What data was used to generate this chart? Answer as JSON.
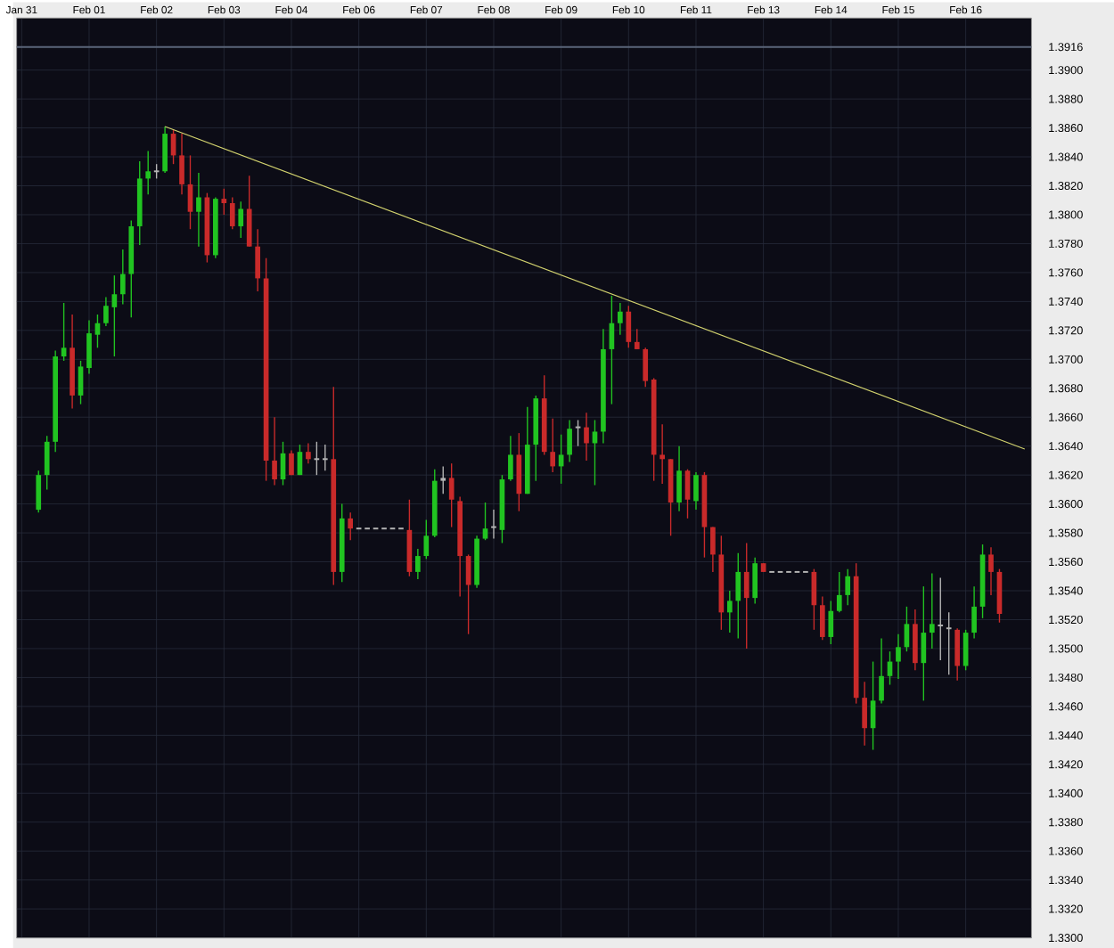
{
  "chart_data": {
    "type": "candlestick",
    "categories": [
      "Jan 31",
      null,
      null,
      null,
      null,
      null,
      null,
      null,
      "Feb 01",
      null,
      null,
      null,
      null,
      null,
      null,
      null,
      "Feb 02",
      null,
      null,
      null,
      null,
      null,
      null,
      null,
      "Feb 03",
      null,
      null,
      null,
      null,
      null,
      null,
      null,
      "Feb 04",
      null,
      null,
      null,
      null,
      null,
      null,
      null,
      "Feb 06",
      null,
      null,
      null,
      null,
      null,
      null,
      null,
      "Feb 07",
      null,
      null,
      null,
      null,
      null,
      null,
      null,
      "Feb 08",
      null,
      null,
      null,
      null,
      null,
      null,
      null,
      "Feb 09",
      null,
      null,
      null,
      null,
      null,
      null,
      null,
      "Feb 10",
      null,
      null,
      null,
      null,
      null,
      null,
      null,
      "Feb 11",
      null,
      null,
      null,
      null,
      null,
      null,
      null,
      "Feb 13",
      null,
      null,
      null,
      null,
      null,
      null,
      null,
      "Feb 14",
      null,
      null,
      null,
      null,
      null,
      null,
      null,
      "Feb 15",
      null,
      null,
      null,
      null,
      null,
      null,
      null,
      "Feb 16",
      null,
      null,
      null,
      null,
      null,
      null,
      null
    ],
    "ohlc": [
      null,
      null,
      [
        1.3596,
        1.3623,
        1.3594,
        1.362
      ],
      [
        1.362,
        1.3647,
        1.361,
        1.3643
      ],
      [
        1.3643,
        1.3706,
        1.3636,
        1.3702
      ],
      [
        1.3702,
        1.3739,
        1.3699,
        1.3708
      ],
      [
        1.3708,
        1.3731,
        1.3666,
        1.3675
      ],
      [
        1.3675,
        1.3699,
        1.3669,
        1.3695
      ],
      [
        1.3694,
        1.3727,
        1.369,
        1.3718
      ],
      [
        1.3717,
        1.3731,
        1.3708,
        1.3725
      ],
      [
        1.3725,
        1.3743,
        1.3723,
        1.3737
      ],
      [
        1.3736,
        1.3758,
        1.3702,
        1.3745
      ],
      [
        1.3745,
        1.3776,
        1.3738,
        1.3759
      ],
      [
        1.3759,
        1.3796,
        1.3729,
        1.3792
      ],
      [
        1.3792,
        1.3837,
        1.3779,
        1.3825
      ],
      [
        1.3825,
        1.3844,
        1.3814,
        1.383
      ],
      [
        1.383,
        1.3835,
        1.3825,
        1.383
      ],
      [
        1.383,
        1.3861,
        1.3829,
        1.3856
      ],
      [
        1.3856,
        1.3859,
        1.3835,
        1.3841
      ],
      [
        1.3841,
        1.3856,
        1.3814,
        1.3821
      ],
      [
        1.3821,
        1.3841,
        1.379,
        1.3802
      ],
      [
        1.3802,
        1.3829,
        1.3778,
        1.3812
      ],
      [
        1.3812,
        1.3815,
        1.3767,
        1.3772
      ],
      [
        1.3772,
        1.3812,
        1.377,
        1.3811
      ],
      [
        1.3811,
        1.3818,
        1.38,
        1.3808
      ],
      [
        1.3808,
        1.3812,
        1.379,
        1.3792
      ],
      [
        1.3792,
        1.3809,
        1.3784,
        1.3804
      ],
      [
        1.3804,
        1.3827,
        1.3778,
        1.3778
      ],
      [
        1.3778,
        1.379,
        1.3747,
        1.3756
      ],
      [
        1.3756,
        1.377,
        1.3616,
        1.363
      ],
      [
        1.363,
        1.366,
        1.3613,
        1.3617
      ],
      [
        1.3617,
        1.3643,
        1.3613,
        1.3635
      ],
      [
        1.3635,
        1.3637,
        1.362,
        1.362
      ],
      [
        1.362,
        1.3641,
        1.362,
        1.3636
      ],
      [
        1.3636,
        1.3642,
        1.3628,
        1.3631
      ],
      [
        1.3631,
        1.3643,
        1.362,
        1.3631
      ],
      [
        1.3631,
        1.3641,
        1.3623,
        1.3631
      ],
      [
        1.3631,
        1.3681,
        1.3544,
        1.3553
      ],
      [
        1.3553,
        1.36,
        1.3546,
        1.359
      ],
      [
        1.359,
        1.3594,
        1.3575,
        1.3583
      ],
      [
        1.3583,
        1.3583,
        1.3583,
        1.3583
      ],
      [
        1.3583,
        1.3583,
        1.3583,
        1.3583
      ],
      [
        1.3583,
        1.3583,
        1.3583,
        1.3583
      ],
      [
        1.3583,
        1.3583,
        1.3583,
        1.3583
      ],
      [
        1.3583,
        1.3583,
        1.3583,
        1.3583
      ],
      [
        1.3583,
        1.3583,
        1.3583,
        1.3583
      ],
      [
        1.3582,
        1.3603,
        1.355,
        1.3553
      ],
      [
        1.3553,
        1.3569,
        1.3548,
        1.3564
      ],
      [
        1.3564,
        1.3589,
        1.3562,
        1.3578
      ],
      [
        1.3578,
        1.3624,
        1.3577,
        1.3616
      ],
      [
        1.3616,
        1.3626,
        1.3607,
        1.3618
      ],
      [
        1.3618,
        1.3628,
        1.3584,
        1.3603
      ],
      [
        1.3602,
        1.3605,
        1.3536,
        1.3564
      ],
      [
        1.3564,
        1.3565,
        1.351,
        1.3544
      ],
      [
        1.3544,
        1.3578,
        1.3542,
        1.3576
      ],
      [
        1.3576,
        1.3601,
        1.3575,
        1.3583
      ],
      [
        1.3584,
        1.3596,
        1.3576,
        1.3584
      ],
      [
        1.3582,
        1.362,
        1.3573,
        1.3617
      ],
      [
        1.3617,
        1.3647,
        1.3616,
        1.3634
      ],
      [
        1.3634,
        1.3649,
        1.3595,
        1.3607
      ],
      [
        1.3607,
        1.3667,
        1.3607,
        1.3641
      ],
      [
        1.3641,
        1.3675,
        1.3616,
        1.3673
      ],
      [
        1.3673,
        1.3689,
        1.3634,
        1.3636
      ],
      [
        1.3636,
        1.3659,
        1.3622,
        1.3626
      ],
      [
        1.3626,
        1.3648,
        1.3614,
        1.3634
      ],
      [
        1.3634,
        1.3658,
        1.3629,
        1.3652
      ],
      [
        1.3653,
        1.3658,
        1.364,
        1.3653
      ],
      [
        1.3653,
        1.3663,
        1.363,
        1.3642
      ],
      [
        1.3642,
        1.3658,
        1.3613,
        1.365
      ],
      [
        1.365,
        1.3721,
        1.3642,
        1.3707
      ],
      [
        1.3707,
        1.3744,
        1.3669,
        1.3725
      ],
      [
        1.3725,
        1.3739,
        1.3717,
        1.3733
      ],
      [
        1.3733,
        1.3737,
        1.3708,
        1.3712
      ],
      [
        1.3712,
        1.3721,
        1.3707,
        1.3707
      ],
      [
        1.3707,
        1.3708,
        1.3681,
        1.3685
      ],
      [
        1.3686,
        1.3687,
        1.3616,
        1.3634
      ],
      [
        1.3634,
        1.3655,
        1.3614,
        1.3631
      ],
      [
        1.3631,
        1.3631,
        1.3578,
        1.3601
      ],
      [
        1.3601,
        1.364,
        1.3595,
        1.3623
      ],
      [
        1.3623,
        1.3624,
        1.359,
        1.3603
      ],
      [
        1.3602,
        1.3622,
        1.3596,
        1.362
      ],
      [
        1.362,
        1.3622,
        1.3563,
        1.3584
      ],
      [
        1.3584,
        1.3584,
        1.3553,
        1.3565
      ],
      [
        1.3565,
        1.3578,
        1.3513,
        1.3525
      ],
      [
        1.3525,
        1.354,
        1.3511,
        1.3533
      ],
      [
        1.3533,
        1.3566,
        1.3507,
        1.3553
      ],
      [
        1.3553,
        1.3573,
        1.35,
        1.3535
      ],
      [
        1.3535,
        1.3563,
        1.3531,
        1.3559
      ],
      [
        1.3559,
        1.3559,
        1.3553,
        1.3553
      ],
      [
        1.3553,
        1.3553,
        1.3553,
        1.3553
      ],
      [
        1.3553,
        1.3553,
        1.3553,
        1.3553
      ],
      [
        1.3553,
        1.3553,
        1.3553,
        1.3553
      ],
      [
        1.3553,
        1.3553,
        1.3553,
        1.3553
      ],
      [
        1.3553,
        1.3553,
        1.3553,
        1.3553
      ],
      [
        1.3553,
        1.3555,
        1.3513,
        1.353
      ],
      [
        1.353,
        1.3536,
        1.3506,
        1.3508
      ],
      [
        1.3508,
        1.3533,
        1.3503,
        1.3526
      ],
      [
        1.3526,
        1.3553,
        1.3525,
        1.3537
      ],
      [
        1.3537,
        1.3555,
        1.353,
        1.355
      ],
      [
        1.355,
        1.3559,
        1.3462,
        1.3466
      ],
      [
        1.3466,
        1.3477,
        1.3433,
        1.3445
      ],
      [
        1.3445,
        1.3491,
        1.343,
        1.3464
      ],
      [
        1.3464,
        1.3507,
        1.3462,
        1.3481
      ],
      [
        1.3481,
        1.3498,
        1.3475,
        1.3491
      ],
      [
        1.3491,
        1.351,
        1.3479,
        1.3501
      ],
      [
        1.3501,
        1.3529,
        1.3498,
        1.3517
      ],
      [
        1.3517,
        1.3527,
        1.3485,
        1.349
      ],
      [
        1.349,
        1.3543,
        1.3464,
        1.3511
      ],
      [
        1.3511,
        1.3552,
        1.35,
        1.3517
      ],
      [
        1.3516,
        1.3549,
        1.3492,
        1.3516
      ],
      [
        1.3514,
        1.3525,
        1.3482,
        1.3514
      ],
      [
        1.3513,
        1.3514,
        1.3478,
        1.3488
      ],
      [
        1.3488,
        1.3513,
        1.3485,
        1.3511
      ],
      [
        1.3511,
        1.3543,
        1.3507,
        1.3529
      ],
      [
        1.3529,
        1.3572,
        1.3521,
        1.3565
      ],
      [
        1.3565,
        1.357,
        1.3537,
        1.3553
      ],
      [
        1.3553,
        1.3555,
        1.3518,
        1.3524
      ],
      null,
      null,
      null
    ],
    "colors": [
      null,
      null,
      "#21c421",
      "#21c421",
      "#21c421",
      "#21c421",
      "#c92a2a",
      "#21c421",
      "#21c421",
      "#21c421",
      "#21c421",
      "#21c421",
      "#21c421",
      "#21c421",
      "#21c421",
      "#21c421",
      "#b4b4b4",
      "#21c421",
      "#c92a2a",
      "#c92a2a",
      "#c92a2a",
      "#21c421",
      "#c92a2a",
      "#21c421",
      "#c92a2a",
      "#c92a2a",
      "#21c421",
      "#c92a2a",
      "#c92a2a",
      "#c92a2a",
      "#c92a2a",
      "#21c421",
      "#c92a2a",
      "#21c421",
      "#c92a2a",
      "#b4b4b4",
      "#b4b4b4",
      "#c92a2a",
      "#21c421",
      "#c92a2a",
      "#b4b4b4",
      "#b4b4b4",
      "#b4b4b4",
      "#b4b4b4",
      "#b4b4b4",
      "#b4b4b4",
      "#c92a2a",
      "#21c421",
      "#21c421",
      "#21c421",
      "#b4b4b4",
      "#c92a2a",
      "#c92a2a",
      "#c92a2a",
      "#21c421",
      "#21c421",
      "#b4b4b4",
      "#21c421",
      "#21c421",
      "#c92a2a",
      "#21c421",
      "#21c421",
      "#c92a2a",
      "#c92a2a",
      "#21c421",
      "#21c421",
      "#b4b4b4",
      "#c92a2a",
      "#21c421",
      "#21c421",
      "#21c421",
      "#21c421",
      "#c92a2a",
      "#c92a2a",
      "#c92a2a",
      "#c92a2a",
      "#c92a2a",
      "#c92a2a",
      "#21c421",
      "#c92a2a",
      "#21c421",
      "#c92a2a",
      "#c92a2a",
      "#c92a2a",
      "#21c421",
      "#21c421",
      "#c92a2a",
      "#21c421",
      "#c92a2a",
      "#b4b4b4",
      "#b4b4b4",
      "#b4b4b4",
      "#b4b4b4",
      "#b4b4b4",
      "#c92a2a",
      "#c92a2a",
      "#21c421",
      "#21c421",
      "#21c421",
      "#c92a2a",
      "#c92a2a",
      "#21c421",
      "#21c421",
      "#21c421",
      "#21c421",
      "#21c421",
      "#c92a2a",
      "#21c421",
      "#21c421",
      "#b4b4b4",
      "#b4b4b4",
      "#c92a2a",
      "#21c421",
      "#21c421",
      "#21c421",
      "#c92a2a",
      "#c92a2a",
      null,
      null,
      null
    ],
    "series": [
      {
        "type": "line",
        "color": "#d2d26e",
        "values": [
          null,
          null,
          null,
          null,
          null,
          null,
          null,
          null,
          null,
          null,
          null,
          null,
          null,
          null,
          null,
          null,
          null,
          1.3861,
          null,
          null,
          null,
          null,
          null,
          null,
          null,
          null,
          null,
          null,
          null,
          null,
          null,
          null,
          null,
          null,
          null,
          null,
          null,
          null,
          null,
          null,
          null,
          null,
          null,
          null,
          null,
          null,
          null,
          null,
          null,
          null,
          null,
          null,
          null,
          null,
          null,
          null,
          null,
          null,
          null,
          null,
          null,
          null,
          null,
          null,
          null,
          null,
          null,
          null,
          null,
          null,
          null,
          null,
          null,
          null,
          null,
          null,
          null,
          null,
          null,
          null,
          null,
          null,
          null,
          null,
          null,
          null,
          null,
          null,
          null,
          null,
          null,
          null,
          null,
          null,
          null,
          null,
          null,
          null,
          null,
          null,
          null,
          null,
          null,
          null,
          null,
          null,
          null,
          null,
          null,
          null,
          null,
          null,
          null,
          null,
          null,
          null,
          null,
          null,
          null,
          1.3638
        ]
      }
    ],
    "ref_lines": [
      {
        "axis": "y",
        "value": 1.3916,
        "color": "#5a6478"
      }
    ],
    "ylim": [
      1.33,
      1.3936
    ],
    "yticks": [
      {
        "value": 1.33,
        "label": "1.3300"
      },
      {
        "value": 1.332,
        "label": "1.3320"
      },
      {
        "value": 1.334,
        "label": "1.3340"
      },
      {
        "value": 1.336,
        "label": "1.3360"
      },
      {
        "value": 1.338,
        "label": "1.3380"
      },
      {
        "value": 1.34,
        "label": "1.3400"
      },
      {
        "value": 1.342,
        "label": "1.3420"
      },
      {
        "value": 1.344,
        "label": "1.3440"
      },
      {
        "value": 1.346,
        "label": "1.3460"
      },
      {
        "value": 1.348,
        "label": "1.3480"
      },
      {
        "value": 1.35,
        "label": "1.3500"
      },
      {
        "value": 1.352,
        "label": "1.3520"
      },
      {
        "value": 1.354,
        "label": "1.3540"
      },
      {
        "value": 1.356,
        "label": "1.3560"
      },
      {
        "value": 1.358,
        "label": "1.3580"
      },
      {
        "value": 1.36,
        "label": "1.3600"
      },
      {
        "value": 1.362,
        "label": "1.3620"
      },
      {
        "value": 1.364,
        "label": "1.3640"
      },
      {
        "value": 1.366,
        "label": "1.3660"
      },
      {
        "value": 1.368,
        "label": "1.3680"
      },
      {
        "value": 1.37,
        "label": "1.3700"
      },
      {
        "value": 1.372,
        "label": "1.3720"
      },
      {
        "value": 1.374,
        "label": "1.3740"
      },
      {
        "value": 1.376,
        "label": "1.3760"
      },
      {
        "value": 1.378,
        "label": "1.3780"
      },
      {
        "value": 1.38,
        "label": "1.3800"
      },
      {
        "value": 1.382,
        "label": "1.3820"
      },
      {
        "value": 1.384,
        "label": "1.3840"
      },
      {
        "value": 1.386,
        "label": "1.3860"
      },
      {
        "value": 1.388,
        "label": "1.3880"
      },
      {
        "value": 1.39,
        "label": "1.3900"
      },
      {
        "value": 1.3916,
        "label": "1.3916"
      }
    ],
    "grid": true
  }
}
